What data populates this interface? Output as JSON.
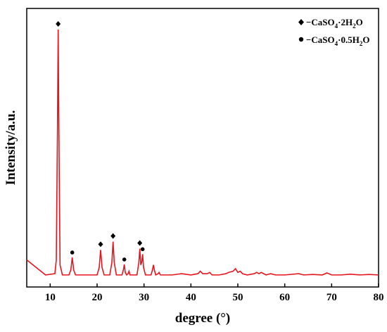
{
  "chart_data": {
    "type": "line",
    "xlabel": "degree (°)",
    "ylabel": "Intensity/a.u.",
    "xlim": [
      5,
      80
    ],
    "x_ticks": [
      10,
      20,
      30,
      40,
      50,
      60,
      70,
      80
    ],
    "y_ticks_shown": false,
    "grid": false,
    "legend_position": "top-right",
    "line_color": "#e8141d",
    "series": [
      {
        "points": [
          [
            5,
            8
          ],
          [
            9,
            2
          ],
          [
            11.0,
            2.5
          ],
          [
            11.3,
            8
          ],
          [
            11.55,
            60
          ],
          [
            11.7,
            100
          ],
          [
            11.85,
            60
          ],
          [
            12.1,
            6
          ],
          [
            12.6,
            2
          ],
          [
            14.0,
            2
          ],
          [
            14.4,
            4
          ],
          [
            14.7,
            9
          ],
          [
            15.0,
            4
          ],
          [
            15.4,
            2
          ],
          [
            20.0,
            2
          ],
          [
            20.45,
            5
          ],
          [
            20.75,
            12
          ],
          [
            21.05,
            5
          ],
          [
            21.5,
            2
          ],
          [
            22.7,
            2
          ],
          [
            23.15,
            7
          ],
          [
            23.4,
            15.3
          ],
          [
            23.65,
            7
          ],
          [
            24.1,
            2
          ],
          [
            25.3,
            2
          ],
          [
            25.6,
            4
          ],
          [
            25.8,
            6.2
          ],
          [
            26.0,
            3
          ],
          [
            26.3,
            2
          ],
          [
            26.6,
            2.5
          ],
          [
            26.8,
            3.5
          ],
          [
            27.0,
            2
          ],
          [
            28.5,
            2
          ],
          [
            28.9,
            7
          ],
          [
            29.1,
            12.5
          ],
          [
            29.3,
            6
          ],
          [
            29.5,
            7
          ],
          [
            29.7,
            10.3
          ],
          [
            29.9,
            5
          ],
          [
            30.3,
            2
          ],
          [
            31.5,
            2
          ],
          [
            31.8,
            4
          ],
          [
            32.0,
            6
          ],
          [
            32.2,
            4
          ],
          [
            32.5,
            2
          ],
          [
            33.0,
            2.5
          ],
          [
            33.2,
            3
          ],
          [
            33.5,
            2
          ],
          [
            36,
            2
          ],
          [
            38,
            2.5
          ],
          [
            40,
            2
          ],
          [
            41.5,
            2.5
          ],
          [
            42.0,
            3.5
          ],
          [
            42.5,
            2.5
          ],
          [
            43.5,
            2.5
          ],
          [
            44.0,
            3
          ],
          [
            44.5,
            2
          ],
          [
            46,
            2
          ],
          [
            47.5,
            2.5
          ],
          [
            48,
            3
          ],
          [
            49.0,
            3.5
          ],
          [
            49.5,
            4.5
          ],
          [
            50,
            3
          ],
          [
            50.5,
            3.5
          ],
          [
            51,
            2.5
          ],
          [
            52,
            2
          ],
          [
            53.5,
            2.5
          ],
          [
            54,
            3
          ],
          [
            54.5,
            2.5
          ],
          [
            55,
            3
          ],
          [
            56,
            2
          ],
          [
            57,
            2.5
          ],
          [
            58,
            2
          ],
          [
            60,
            2
          ],
          [
            63,
            2.5
          ],
          [
            64,
            2
          ],
          [
            66,
            2.2
          ],
          [
            68,
            2
          ],
          [
            69,
            2.8
          ],
          [
            70,
            2
          ],
          [
            72,
            2
          ],
          [
            74,
            2.3
          ],
          [
            76,
            2
          ],
          [
            78,
            2.2
          ],
          [
            80,
            2
          ]
        ]
      }
    ],
    "markers": {
      "diamond": [
        11.7,
        20.75,
        23.4,
        29.1
      ],
      "circle": [
        14.7,
        25.8,
        29.7
      ]
    },
    "legend": {
      "items": [
        {
          "symbol": "diamond",
          "label_main": "−CaSO",
          "label_sub1": "4",
          "label_mid": "·2H",
          "label_sub2": "2",
          "label_end": "O"
        },
        {
          "symbol": "circle",
          "label_main": "−CaSO",
          "label_sub1": "4",
          "label_mid": "·0.5H",
          "label_sub2": "2",
          "label_end": "O"
        }
      ]
    }
  }
}
